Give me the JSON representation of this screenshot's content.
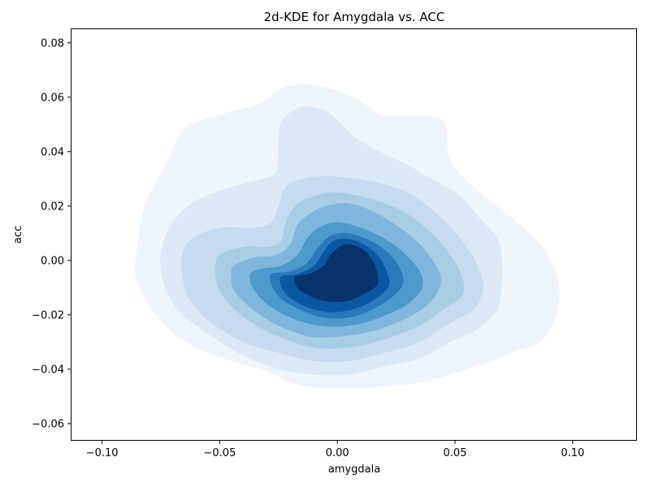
{
  "chart_data": {
    "type": "contour",
    "title": "2d-KDE for Amygdala vs. ACC",
    "xlabel": "amygdala",
    "ylabel": "acc",
    "xlim": [
      -0.113,
      0.127
    ],
    "ylim": [
      -0.066,
      0.085
    ],
    "xticks": [
      -0.1,
      -0.05,
      0.0,
      0.05,
      0.1
    ],
    "xtick_labels": [
      "−0.10",
      "−0.05",
      "0.00",
      "0.05",
      "0.10"
    ],
    "yticks": [
      -0.06,
      -0.04,
      -0.02,
      0.0,
      0.02,
      0.04,
      0.06,
      0.08
    ],
    "ytick_labels": [
      "−0.06",
      "−0.04",
      "−0.02",
      "0.00",
      "0.02",
      "0.04",
      "0.06",
      "0.08"
    ],
    "grid": false,
    "colormap": "Blues",
    "levels": [
      {
        "level": 1,
        "color": "#eef5fc",
        "points": [
          [
            -0.085,
            0.005
          ],
          [
            -0.082,
            0.02
          ],
          [
            -0.072,
            0.037
          ],
          [
            -0.068,
            0.045
          ],
          [
            -0.063,
            0.05
          ],
          [
            -0.048,
            0.054
          ],
          [
            -0.033,
            0.058
          ],
          [
            -0.02,
            0.0645
          ],
          [
            -0.005,
            0.0635
          ],
          [
            0.007,
            0.06
          ],
          [
            0.018,
            0.054
          ],
          [
            0.028,
            0.053
          ],
          [
            0.04,
            0.053
          ],
          [
            0.046,
            0.05
          ],
          [
            0.047,
            0.04
          ],
          [
            0.05,
            0.034
          ],
          [
            0.058,
            0.027
          ],
          [
            0.068,
            0.02
          ],
          [
            0.079,
            0.012
          ],
          [
            0.088,
            0.004
          ],
          [
            0.094,
            -0.008
          ],
          [
            0.093,
            -0.02
          ],
          [
            0.086,
            -0.03
          ],
          [
            0.074,
            -0.034
          ],
          [
            0.062,
            -0.038
          ],
          [
            0.052,
            -0.041
          ],
          [
            0.04,
            -0.044
          ],
          [
            0.025,
            -0.046
          ],
          [
            0.005,
            -0.047
          ],
          [
            -0.015,
            -0.046
          ],
          [
            -0.03,
            -0.041
          ],
          [
            -0.045,
            -0.037
          ],
          [
            -0.06,
            -0.032
          ],
          [
            -0.072,
            -0.025
          ],
          [
            -0.081,
            -0.015
          ],
          [
            -0.086,
            -0.005
          ]
        ]
      },
      {
        "level": 2,
        "color": "#dbe9f6",
        "points": [
          [
            -0.075,
            0.003
          ],
          [
            -0.07,
            0.014
          ],
          [
            -0.06,
            0.022
          ],
          [
            -0.045,
            0.027
          ],
          [
            -0.032,
            0.03
          ],
          [
            -0.026,
            0.033
          ],
          [
            -0.025,
            0.045
          ],
          [
            -0.023,
            0.052
          ],
          [
            -0.015,
            0.0565
          ],
          [
            -0.005,
            0.055
          ],
          [
            0.002,
            0.05
          ],
          [
            0.008,
            0.045
          ],
          [
            0.018,
            0.04
          ],
          [
            0.03,
            0.035
          ],
          [
            0.04,
            0.03
          ],
          [
            0.052,
            0.024
          ],
          [
            0.06,
            0.016
          ],
          [
            0.068,
            0.008
          ],
          [
            0.07,
            0.0
          ],
          [
            0.07,
            -0.008
          ],
          [
            0.068,
            -0.018
          ],
          [
            0.06,
            -0.025
          ],
          [
            0.048,
            -0.03
          ],
          [
            0.035,
            -0.036
          ],
          [
            0.02,
            -0.039
          ],
          [
            0.005,
            -0.042
          ],
          [
            -0.01,
            -0.042
          ],
          [
            -0.025,
            -0.04
          ],
          [
            -0.04,
            -0.035
          ],
          [
            -0.055,
            -0.027
          ],
          [
            -0.068,
            -0.018
          ],
          [
            -0.074,
            -0.008
          ]
        ]
      },
      {
        "level": 3,
        "color": "#c6dbef",
        "points": [
          [
            -0.066,
            0.002
          ],
          [
            -0.062,
            0.008
          ],
          [
            -0.05,
            0.012
          ],
          [
            -0.035,
            0.012
          ],
          [
            -0.028,
            0.014
          ],
          [
            -0.025,
            0.02
          ],
          [
            -0.022,
            0.027
          ],
          [
            -0.015,
            0.03
          ],
          [
            -0.005,
            0.031
          ],
          [
            0.008,
            0.03
          ],
          [
            0.02,
            0.028
          ],
          [
            0.032,
            0.024
          ],
          [
            0.045,
            0.015
          ],
          [
            0.055,
            0.005
          ],
          [
            0.06,
            -0.003
          ],
          [
            0.062,
            -0.01
          ],
          [
            0.058,
            -0.018
          ],
          [
            0.048,
            -0.023
          ],
          [
            0.035,
            -0.03
          ],
          [
            0.02,
            -0.034
          ],
          [
            0.005,
            -0.037
          ],
          [
            -0.01,
            -0.037
          ],
          [
            -0.025,
            -0.034
          ],
          [
            -0.04,
            -0.03
          ],
          [
            -0.055,
            -0.022
          ],
          [
            -0.063,
            -0.014
          ],
          [
            -0.066,
            -0.006
          ]
        ]
      },
      {
        "level": 4,
        "color": "#a8cee4",
        "points": [
          [
            -0.05,
            0.002
          ],
          [
            -0.04,
            0.005
          ],
          [
            -0.03,
            0.005
          ],
          [
            -0.024,
            0.007
          ],
          [
            -0.022,
            0.014
          ],
          [
            -0.018,
            0.02
          ],
          [
            -0.012,
            0.023
          ],
          [
            -0.003,
            0.025
          ],
          [
            0.008,
            0.024
          ],
          [
            0.02,
            0.021
          ],
          [
            0.03,
            0.017
          ],
          [
            0.04,
            0.01
          ],
          [
            0.048,
            0.002
          ],
          [
            0.053,
            -0.006
          ],
          [
            0.053,
            -0.013
          ],
          [
            0.045,
            -0.018
          ],
          [
            0.035,
            -0.024
          ],
          [
            0.02,
            -0.029
          ],
          [
            0.005,
            -0.032
          ],
          [
            -0.01,
            -0.032
          ],
          [
            -0.025,
            -0.028
          ],
          [
            -0.038,
            -0.022
          ],
          [
            -0.048,
            -0.014
          ],
          [
            -0.052,
            -0.005
          ]
        ]
      },
      {
        "level": 5,
        "color": "#7fb6db",
        "points": [
          [
            -0.045,
            -0.005
          ],
          [
            -0.044,
            -0.002
          ],
          [
            -0.036,
            0.001
          ],
          [
            -0.026,
            0.002
          ],
          [
            -0.02,
            0.006
          ],
          [
            -0.017,
            0.013
          ],
          [
            -0.012,
            0.017
          ],
          [
            -0.005,
            0.02
          ],
          [
            0.005,
            0.021
          ],
          [
            0.015,
            0.018
          ],
          [
            0.025,
            0.013
          ],
          [
            0.035,
            0.006
          ],
          [
            0.042,
            -0.002
          ],
          [
            0.044,
            -0.008
          ],
          [
            0.04,
            -0.015
          ],
          [
            0.03,
            -0.021
          ],
          [
            0.015,
            -0.026
          ],
          [
            0.0,
            -0.028
          ],
          [
            -0.012,
            -0.028
          ],
          [
            -0.025,
            -0.024
          ],
          [
            -0.036,
            -0.018
          ],
          [
            -0.044,
            -0.011
          ]
        ]
      },
      {
        "level": 6,
        "color": "#4d99cc",
        "points": [
          [
            -0.037,
            -0.005
          ],
          [
            -0.032,
            -0.003
          ],
          [
            -0.024,
            -0.002
          ],
          [
            -0.017,
            0.002
          ],
          [
            -0.013,
            0.008
          ],
          [
            -0.008,
            0.012
          ],
          [
            0.0,
            0.014
          ],
          [
            0.01,
            0.012
          ],
          [
            0.02,
            0.008
          ],
          [
            0.028,
            0.003
          ],
          [
            0.035,
            -0.004
          ],
          [
            0.036,
            -0.01
          ],
          [
            0.03,
            -0.016
          ],
          [
            0.018,
            -0.021
          ],
          [
            0.005,
            -0.024
          ],
          [
            -0.008,
            -0.024
          ],
          [
            -0.02,
            -0.021
          ],
          [
            -0.03,
            -0.016
          ],
          [
            -0.036,
            -0.01
          ]
        ]
      },
      {
        "level": 7,
        "color": "#2979bb",
        "points": [
          [
            -0.028,
            -0.005
          ],
          [
            -0.02,
            -0.004
          ],
          [
            -0.013,
            -0.001
          ],
          [
            -0.008,
            0.005
          ],
          [
            -0.003,
            0.009
          ],
          [
            0.004,
            0.01
          ],
          [
            0.012,
            0.008
          ],
          [
            0.02,
            0.004
          ],
          [
            0.026,
            -0.002
          ],
          [
            0.028,
            -0.008
          ],
          [
            0.024,
            -0.013
          ],
          [
            0.015,
            -0.018
          ],
          [
            0.005,
            -0.021
          ],
          [
            -0.006,
            -0.021
          ],
          [
            -0.016,
            -0.018
          ],
          [
            -0.024,
            -0.014
          ],
          [
            -0.028,
            -0.009
          ]
        ]
      },
      {
        "level": 8,
        "color": "#0a58a0",
        "points": [
          [
            -0.024,
            -0.006
          ],
          [
            -0.017,
            -0.005
          ],
          [
            -0.01,
            -0.002
          ],
          [
            -0.006,
            0.003
          ],
          [
            -0.002,
            0.007
          ],
          [
            0.004,
            0.008
          ],
          [
            0.011,
            0.006
          ],
          [
            0.017,
            0.002
          ],
          [
            0.021,
            -0.004
          ],
          [
            0.022,
            -0.009
          ],
          [
            0.018,
            -0.013
          ],
          [
            0.01,
            -0.017
          ],
          [
            0.0,
            -0.019
          ],
          [
            -0.01,
            -0.018
          ],
          [
            -0.018,
            -0.015
          ],
          [
            -0.023,
            -0.011
          ]
        ]
      },
      {
        "level": 9,
        "color": "#08336a",
        "points": [
          [
            -0.018,
            -0.006
          ],
          [
            -0.012,
            -0.005
          ],
          [
            -0.006,
            -0.002
          ],
          [
            -0.003,
            0.002
          ],
          [
            0.001,
            0.005
          ],
          [
            0.005,
            0.006
          ],
          [
            0.011,
            0.004
          ],
          [
            0.015,
            0.0
          ],
          [
            0.017,
            -0.005
          ],
          [
            0.017,
            -0.009
          ],
          [
            0.012,
            -0.012
          ],
          [
            0.004,
            -0.015
          ],
          [
            -0.005,
            -0.015
          ],
          [
            -0.012,
            -0.013
          ],
          [
            -0.017,
            -0.01
          ]
        ]
      }
    ]
  }
}
